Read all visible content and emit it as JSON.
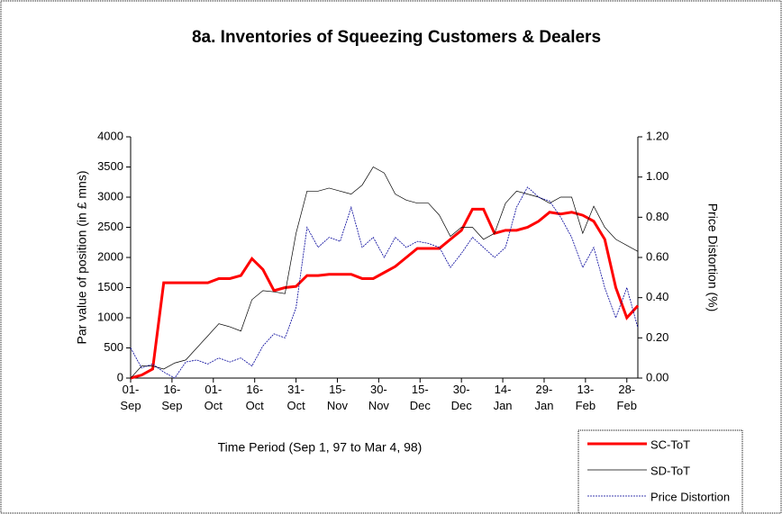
{
  "chart_data": {
    "type": "line",
    "title": "8a. Inventories of Squeezing Customers & Dealers",
    "x_label": "Time Period (Sep 1, 97 to Mar 4, 98)",
    "y_label": "Par value of position (in £ mns)",
    "y2_label": "Price Distortion (%)",
    "x": [
      0,
      4,
      8,
      12,
      16,
      20,
      24,
      28,
      32,
      36,
      40,
      44,
      48,
      52,
      56,
      60,
      64,
      68,
      72,
      76,
      80,
      84,
      88,
      92,
      96,
      100,
      104,
      108,
      112,
      116,
      120,
      124,
      128,
      132,
      136,
      140,
      144,
      148,
      152,
      156,
      160,
      164,
      168,
      172,
      176,
      180,
      184
    ],
    "xlim": [
      0,
      184
    ],
    "xticks": [
      {
        "value": 0,
        "label": "01- Sep"
      },
      {
        "value": 15,
        "label": "16- Sep"
      },
      {
        "value": 30,
        "label": "01- Oct"
      },
      {
        "value": 45,
        "label": "16- Oct"
      },
      {
        "value": 60,
        "label": "31- Oct"
      },
      {
        "value": 75,
        "label": "15- Nov"
      },
      {
        "value": 90,
        "label": "30- Nov"
      },
      {
        "value": 105,
        "label": "15- Dec"
      },
      {
        "value": 120,
        "label": "30- Dec"
      },
      {
        "value": 135,
        "label": "14- Jan"
      },
      {
        "value": 150,
        "label": "29- Jan"
      },
      {
        "value": 165,
        "label": "13- Feb"
      },
      {
        "value": 180,
        "label": "28- Feb"
      }
    ],
    "ylim": [
      0,
      4000
    ],
    "yticks": [
      0,
      500,
      1000,
      1500,
      2000,
      2500,
      3000,
      3500,
      4000
    ],
    "y2lim": [
      0,
      1.2
    ],
    "y2ticks": [
      {
        "value": 0,
        "label": "0.00"
      },
      {
        "value": 0.2,
        "label": "0.20"
      },
      {
        "value": 0.4,
        "label": "0.40"
      },
      {
        "value": 0.6,
        "label": "0.60"
      },
      {
        "value": 0.8,
        "label": "0.80"
      },
      {
        "value": 1.0,
        "label": "1.00"
      },
      {
        "value": 1.2,
        "label": "1.20"
      }
    ],
    "legend": "bottom-right",
    "series": [
      {
        "name": "SC-ToT",
        "color": "#ff0000",
        "width": 3,
        "values": [
          0,
          50,
          150,
          1580,
          1580,
          1580,
          1580,
          1580,
          1650,
          1650,
          1700,
          1980,
          1800,
          1450,
          1500,
          1520,
          1700,
          1700,
          1720,
          1720,
          1720,
          1650,
          1650,
          1750,
          1850,
          2000,
          2150,
          2150,
          2150,
          2300,
          2450,
          2800,
          2800,
          2400,
          2450,
          2450,
          2500,
          2600,
          2750,
          2720,
          2750,
          2700,
          2600,
          2300,
          1500,
          1000,
          1200
        ]
      },
      {
        "name": "SD-ToT",
        "color": "#000000",
        "width": 0.7,
        "values": [
          0,
          200,
          200,
          150,
          250,
          300,
          500,
          700,
          900,
          850,
          780,
          1300,
          1450,
          1430,
          1400,
          2400,
          3100,
          3100,
          3150,
          3100,
          3050,
          3200,
          3500,
          3400,
          3050,
          2950,
          2900,
          2900,
          2700,
          2350,
          2500,
          2500,
          2300,
          2400,
          2900,
          3100,
          3050,
          3000,
          2900,
          3000,
          3000,
          2400,
          2850,
          2500,
          2300,
          2200,
          2100
        ]
      },
      {
        "name": "Price Distortion",
        "color": "#000099",
        "width": 0.8,
        "dash": true,
        "axis": "y2",
        "values": [
          0.15,
          0.05,
          0.07,
          0.03,
          0.0,
          0.08,
          0.09,
          0.07,
          0.1,
          0.08,
          0.1,
          0.06,
          0.16,
          0.22,
          0.2,
          0.35,
          0.75,
          0.65,
          0.7,
          0.68,
          0.85,
          0.65,
          0.7,
          0.6,
          0.7,
          0.65,
          0.68,
          0.67,
          0.65,
          0.55,
          0.62,
          0.7,
          0.65,
          0.6,
          0.65,
          0.85,
          0.95,
          0.9,
          0.88,
          0.8,
          0.7,
          0.55,
          0.65,
          0.45,
          0.3,
          0.45,
          0.25
        ]
      }
    ]
  }
}
